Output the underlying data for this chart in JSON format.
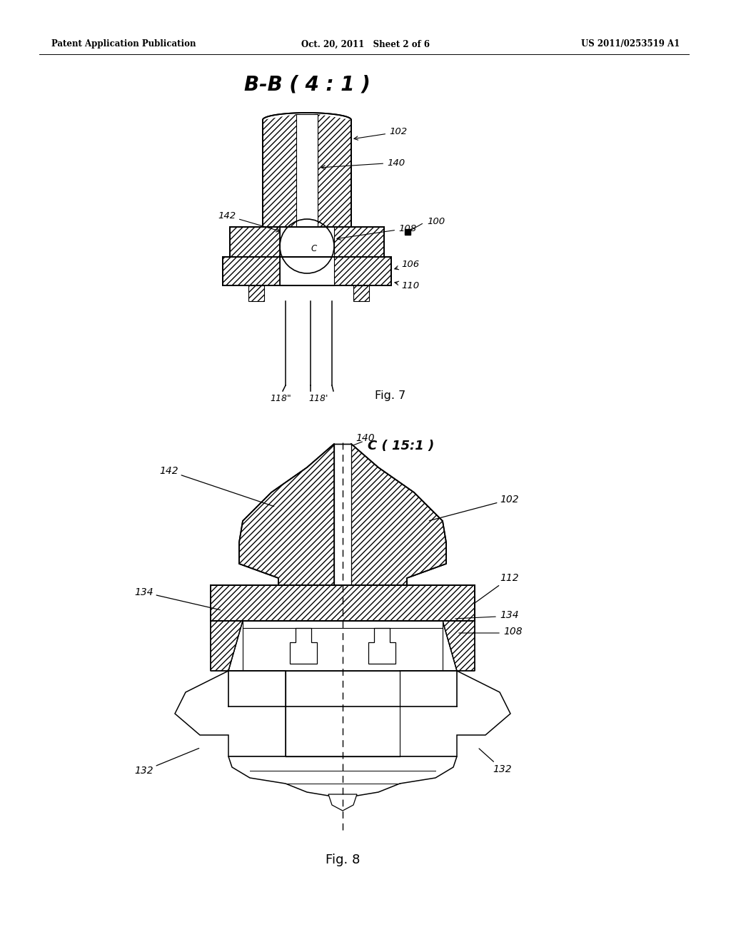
{
  "bg": "#ffffff",
  "header_left": "Patent Application Publication",
  "header_center": "Oct. 20, 2011   Sheet 2 of 6",
  "header_right": "US 2011/0253519 A1",
  "fig7_title": "B-B ( 4 : 1 )",
  "fig7_label": "Fig. 7",
  "fig8_label": "Fig. 8",
  "fig8_title": "C ( 15:1 )"
}
